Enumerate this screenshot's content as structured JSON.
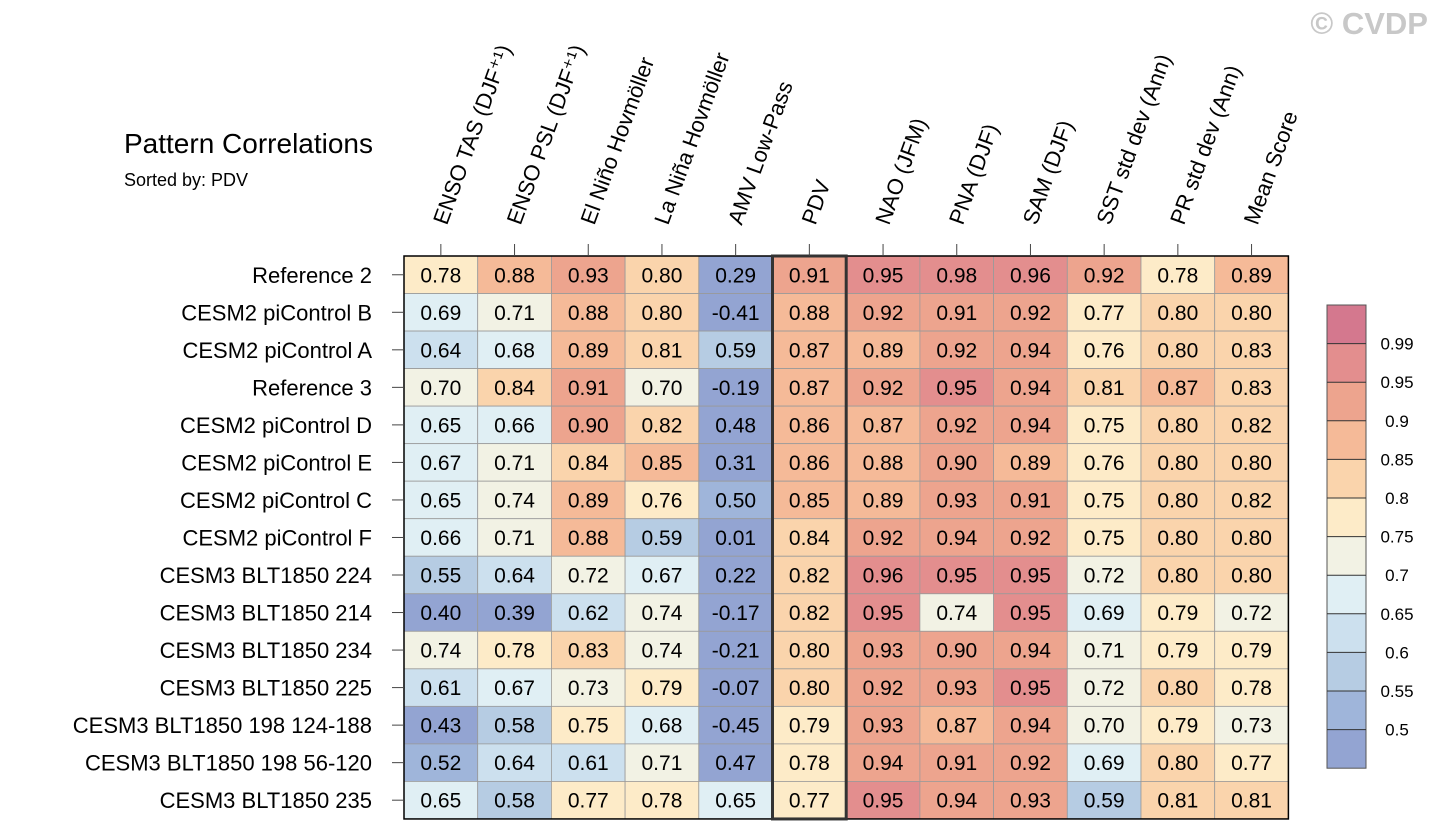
{
  "chart_data": {
    "type": "heatmap",
    "title": "Pattern Correlations",
    "subtitle": "Sorted by: PDV",
    "watermark": "© CVDP",
    "highlighted_column": "PDV",
    "columns": [
      "ENSO TAS (DJF⁺¹)",
      "ENSO PSL (DJF⁺¹)",
      "El Niño Hovmöller",
      "La Niña Hovmöller",
      "AMV Low-Pass",
      "PDV",
      "NAO (JFM)",
      "PNA (DJF)",
      "SAM (DJF)",
      "SST std dev (Ann)",
      "PR std dev (Ann)",
      "Mean Score"
    ],
    "rows": [
      "Reference 2",
      "CESM2 piControl B",
      "CESM2 piControl A",
      "Reference 3",
      "CESM2 piControl D",
      "CESM2 piControl E",
      "CESM2 piControl C",
      "CESM2 piControl F",
      "CESM3 BLT1850 224",
      "CESM3 BLT1850 214",
      "CESM3 BLT1850 234",
      "CESM3 BLT1850 225",
      "CESM3 BLT1850 198 124-188",
      "CESM3 BLT1850 198 56-120",
      "CESM3 BLT1850 235"
    ],
    "values": [
      [
        "0.78",
        "0.88",
        "0.93",
        "0.80",
        "0.29",
        "0.91",
        "0.95",
        "0.98",
        "0.96",
        "0.92",
        "0.78",
        "0.89"
      ],
      [
        "0.69",
        "0.71",
        "0.88",
        "0.80",
        "-0.41",
        "0.88",
        "0.92",
        "0.91",
        "0.92",
        "0.77",
        "0.80",
        "0.80"
      ],
      [
        "0.64",
        "0.68",
        "0.89",
        "0.81",
        "0.59",
        "0.87",
        "0.89",
        "0.92",
        "0.94",
        "0.76",
        "0.80",
        "0.83"
      ],
      [
        "0.70",
        "0.84",
        "0.91",
        "0.70",
        "-0.19",
        "0.87",
        "0.92",
        "0.95",
        "0.94",
        "0.81",
        "0.87",
        "0.83"
      ],
      [
        "0.65",
        "0.66",
        "0.90",
        "0.82",
        "0.48",
        "0.86",
        "0.87",
        "0.92",
        "0.94",
        "0.75",
        "0.80",
        "0.82"
      ],
      [
        "0.67",
        "0.71",
        "0.84",
        "0.85",
        "0.31",
        "0.86",
        "0.88",
        "0.90",
        "0.89",
        "0.76",
        "0.80",
        "0.80"
      ],
      [
        "0.65",
        "0.74",
        "0.89",
        "0.76",
        "0.50",
        "0.85",
        "0.89",
        "0.93",
        "0.91",
        "0.75",
        "0.80",
        "0.82"
      ],
      [
        "0.66",
        "0.71",
        "0.88",
        "0.59",
        "0.01",
        "0.84",
        "0.92",
        "0.94",
        "0.92",
        "0.75",
        "0.80",
        "0.80"
      ],
      [
        "0.55",
        "0.64",
        "0.72",
        "0.67",
        "0.22",
        "0.82",
        "0.96",
        "0.95",
        "0.95",
        "0.72",
        "0.80",
        "0.80"
      ],
      [
        "0.40",
        "0.39",
        "0.62",
        "0.74",
        "-0.17",
        "0.82",
        "0.95",
        "0.74",
        "0.95",
        "0.69",
        "0.79",
        "0.72"
      ],
      [
        "0.74",
        "0.78",
        "0.83",
        "0.74",
        "-0.21",
        "0.80",
        "0.93",
        "0.90",
        "0.94",
        "0.71",
        "0.79",
        "0.79"
      ],
      [
        "0.61",
        "0.67",
        "0.73",
        "0.79",
        "-0.07",
        "0.80",
        "0.92",
        "0.93",
        "0.95",
        "0.72",
        "0.80",
        "0.78"
      ],
      [
        "0.43",
        "0.58",
        "0.75",
        "0.68",
        "-0.45",
        "0.79",
        "0.93",
        "0.87",
        "0.94",
        "0.70",
        "0.79",
        "0.73"
      ],
      [
        "0.52",
        "0.64",
        "0.61",
        "0.71",
        "0.47",
        "0.78",
        "0.94",
        "0.91",
        "0.92",
        "0.69",
        "0.80",
        "0.77"
      ],
      [
        "0.65",
        "0.58",
        "0.77",
        "0.78",
        "0.65",
        "0.77",
        "0.95",
        "0.94",
        "0.93",
        "0.59",
        "0.81",
        "0.81"
      ]
    ],
    "colorbar": {
      "levels": [
        "0.99",
        "0.95",
        "0.9",
        "0.85",
        "0.8",
        "0.75",
        "0.7",
        "0.65",
        "0.6",
        "0.55",
        "0.5"
      ],
      "colors": [
        "#D4788E",
        "#E38E8E",
        "#EDA48E",
        "#F5BA98",
        "#FAD4AC",
        "#FDEBC8",
        "#F2F2E4",
        "#E0EFF4",
        "#CCE0EE",
        "#B6CCE3",
        "#9FB5DA",
        "#93A4D2"
      ]
    }
  }
}
